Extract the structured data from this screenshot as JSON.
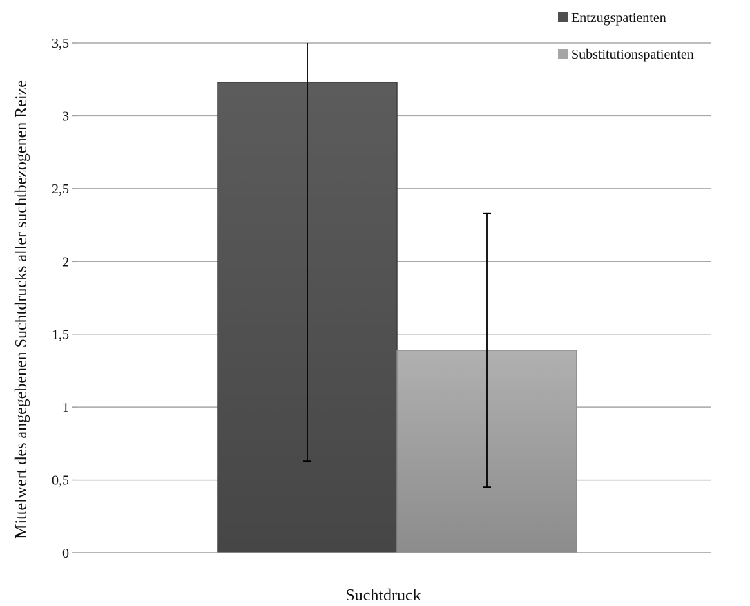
{
  "chart_data": {
    "type": "bar",
    "categories": [
      "Suchtdruck"
    ],
    "series": [
      {
        "name": "Entzugspatienten",
        "values": [
          3.23
        ],
        "error_low": [
          0.63
        ],
        "error_high": [
          3.5
        ],
        "color": "#4f4f4f"
      },
      {
        "name": "Substitutionspatienten",
        "values": [
          1.39
        ],
        "error_low": [
          0.45
        ],
        "error_high": [
          2.33
        ],
        "color": "#a6a6a6"
      }
    ],
    "xlabel": "Suchtdruck",
    "ylabel": "Mittelwert des angegebenen Suchtdrucks aller suchtbezogenen Reize",
    "ylim": [
      0,
      3.5
    ],
    "yticks": [
      "0",
      "0,5",
      "1",
      "1,5",
      "2",
      "2,5",
      "3",
      "3,5"
    ],
    "grid": true,
    "legend": "top-right"
  }
}
